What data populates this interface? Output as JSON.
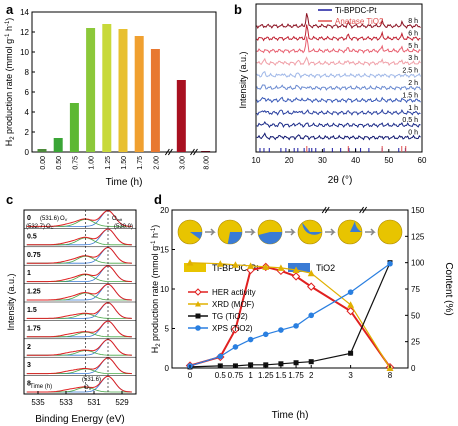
{
  "panel_labels": {
    "a": "a",
    "b": "b",
    "c": "c",
    "d": "d"
  },
  "colors": {
    "bar_gradient": [
      "#4d8a3b",
      "#3aa536",
      "#5db833",
      "#8cc83a",
      "#c8d93a",
      "#e8c030",
      "#f0a030",
      "#e87830",
      "#e04030",
      "#a81020",
      "#5a0a16"
    ],
    "xrd_mof": "#e0b000",
    "tio2_blue": "#3a7bd5",
    "her_red": "#e02020",
    "tg_black": "#111111",
    "xps_blue": "#2a7fe0",
    "pt_spectrum": "#1a1aa0",
    "anatase_ticks": "#e05050"
  },
  "chart_data": [
    {
      "id": "a",
      "type": "bar",
      "categories": [
        "0.00",
        "0.50",
        "0.75",
        "1.00",
        "1.25",
        "1.50",
        "1.75",
        "2.00",
        "3.00",
        "8.00"
      ],
      "values": [
        0.3,
        1.4,
        4.9,
        12.4,
        12.8,
        12.3,
        11.6,
        10.3,
        7.2,
        0.1
      ],
      "xlabel": "Time (h)",
      "ylabel": "H2 production rate (mmol g-1 h-1)",
      "ylabel_parts": {
        "main": "H",
        "sub": "2",
        "rest": " production rate (mmol g",
        "sup1": "-1",
        "mid": " h",
        "sup2": "-1",
        "end": ")"
      },
      "ylim": [
        0,
        14
      ],
      "yticks": [
        0,
        2,
        4,
        6,
        8,
        10,
        12,
        14
      ],
      "broken_x_after": [
        "2.00",
        "3.00"
      ]
    },
    {
      "id": "b",
      "type": "line",
      "xlabel": "2θ (°)",
      "ylabel": "Intensity (a.u.)",
      "xlim": [
        10,
        60
      ],
      "xticks": [
        10,
        20,
        30,
        40,
        50,
        60
      ],
      "legend": [
        "Ti-BPDC-Pt",
        "Anatase TiO2"
      ],
      "trace_labels": [
        "8 h",
        "6 h",
        "5 h",
        "3 h",
        "2.5 h",
        "2 h",
        "1.5 h",
        "1 h",
        "0.5 h",
        "0 h"
      ],
      "reference_peaks_mof": [
        11.2,
        12.4,
        14.0,
        17.5,
        19.0,
        21.5,
        22.6,
        24.5,
        26.0,
        26.8,
        28.0,
        30.5,
        33.0,
        35.5,
        38.0,
        40.0,
        41.5,
        44.0,
        48.0,
        53.0,
        55.0
      ],
      "reference_peaks_anatase": [
        25.3,
        37.8,
        48.0,
        53.9,
        55.1
      ]
    },
    {
      "id": "c",
      "type": "line",
      "xlabel": "Binding Energy (eV)",
      "ylabel": "Intensity (a.u.)",
      "xticks": [
        535,
        533,
        531,
        529
      ],
      "xlim": [
        536,
        528
      ],
      "trace_labels": [
        "0",
        "0.5",
        "0.75",
        "1",
        "1.25",
        "1.5",
        "1.75",
        "2",
        "3",
        "8"
      ],
      "annotations": {
        "peak1": "(531.6)",
        "o_v": "O",
        "o_v_sub": "V",
        "peak2": "(532.7)",
        "o_c": "O",
        "o_c_sub": "C",
        "o_latt": "O",
        "o_latt_sub": "latt",
        "o_latt_val": "(530.0)",
        "time_label": "Time (h)",
        "bottom_peak": "(531.6)",
        "bottom_o": "O",
        "bottom_o_sub": "V"
      }
    },
    {
      "id": "d",
      "type": "line",
      "categories": [
        "0",
        "0.5",
        "0.75",
        "1",
        "1.25",
        "1.5",
        "1.75",
        "2",
        "3",
        "8"
      ],
      "xlabel": "Time (h)",
      "ylabel_left": "H2 production rate (mmol g-1 h-1)",
      "ylabel_right": "Content (%)",
      "ylim_left": [
        0,
        20
      ],
      "yticks_left": [
        0,
        5,
        10,
        15,
        20
      ],
      "ylim_right": [
        0,
        150
      ],
      "yticks_right": [
        0,
        25,
        50,
        75,
        100,
        125,
        150
      ],
      "legend_top": [
        "Ti-BPDC-Pt",
        "TiO2"
      ],
      "series": [
        {
          "name": "HER activity",
          "axis": "left",
          "values": [
            0.3,
            1.4,
            4.9,
            12.4,
            12.8,
            12.3,
            11.6,
            10.3,
            7.2,
            0.1
          ]
        },
        {
          "name": "XRD (MOF)",
          "axis": "right",
          "values": [
            100,
            99,
            98,
            97,
            96,
            95,
            93,
            90,
            60,
            0
          ]
        },
        {
          "name": "TG (TiO2)",
          "axis": "right",
          "values": [
            1,
            2,
            2,
            3,
            3,
            4,
            5,
            6,
            14,
            100
          ]
        },
        {
          "name": "XPS (TiO2)",
          "axis": "right",
          "values": [
            2,
            11,
            20,
            27,
            32,
            36,
            40,
            50,
            72,
            99
          ]
        }
      ],
      "legend_labels": [
        "HER activity",
        "XRD (MOF)",
        "TG (TiO2)",
        "XPS (TiO2)"
      ]
    }
  ]
}
